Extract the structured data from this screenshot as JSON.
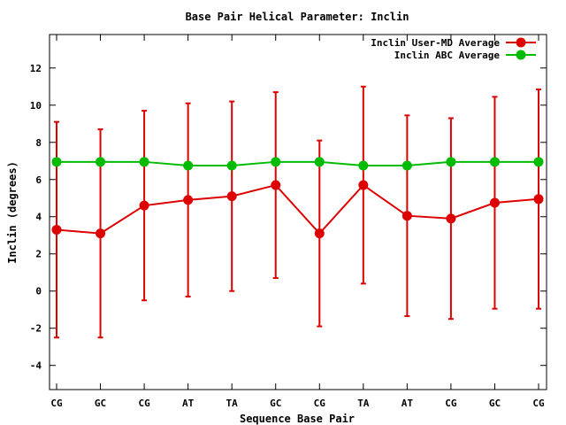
{
  "chart_data": {
    "type": "line",
    "title": "Base Pair Helical Parameter: Inclin",
    "xlabel": "Sequence Base Pair",
    "ylabel": "Inclin (degrees)",
    "categories": [
      "CG",
      "GC",
      "CG",
      "AT",
      "TA",
      "GC",
      "CG",
      "TA",
      "AT",
      "CG",
      "GC",
      "CG"
    ],
    "ylim": [
      -5.3,
      13.8
    ],
    "yticks": [
      -4,
      -2,
      0,
      2,
      4,
      6,
      8,
      10,
      12
    ],
    "legend_position": "top-right",
    "grid": false,
    "series": [
      {
        "name": "Inclin User-MD Average",
        "color": "#dd0000",
        "marker": "circle",
        "values": [
          3.3,
          3.1,
          4.6,
          4.9,
          5.1,
          5.7,
          3.1,
          5.7,
          4.05,
          3.9,
          4.75,
          4.95
        ],
        "error": [
          5.8,
          5.6,
          5.1,
          5.2,
          5.1,
          5.0,
          5.0,
          5.3,
          5.4,
          5.4,
          5.7,
          5.9
        ]
      },
      {
        "name": "Inclin ABC Average",
        "color": "#00bb00",
        "marker": "circle",
        "values": [
          6.95,
          6.95,
          6.95,
          6.75,
          6.75,
          6.95,
          6.95,
          6.75,
          6.75,
          6.95,
          6.95,
          6.95
        ]
      }
    ]
  }
}
